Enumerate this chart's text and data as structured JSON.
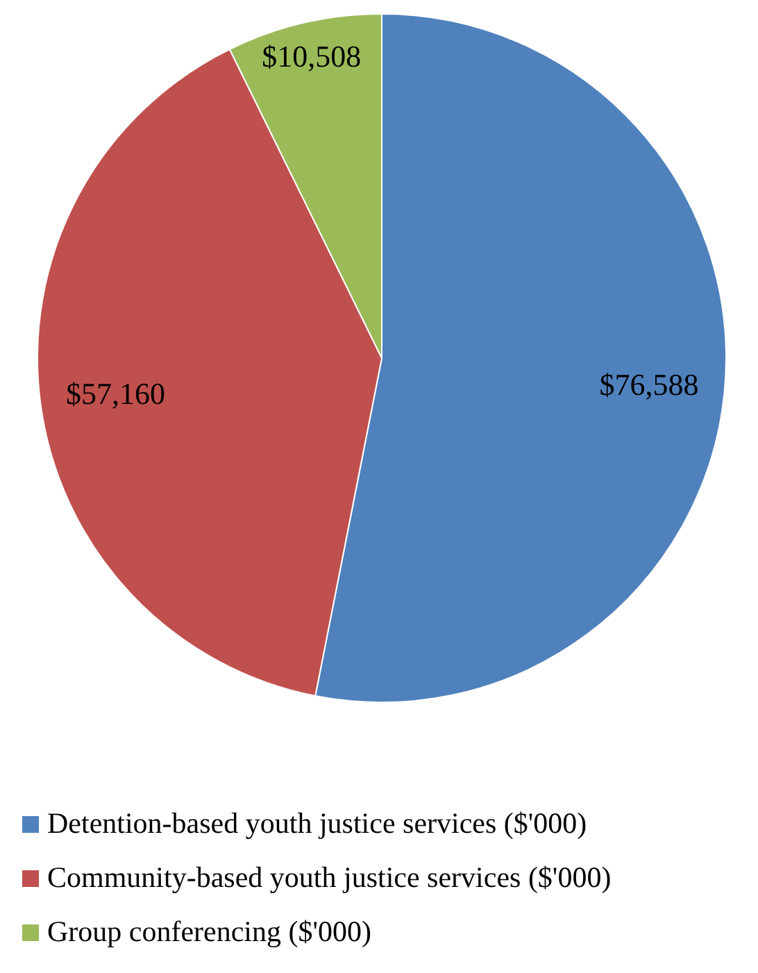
{
  "chart_data": {
    "type": "pie",
    "categories": [
      "Detention-based youth justice services ($'000)",
      "Community-based youth justice services ($'000)",
      "Group conferencing ($'000)"
    ],
    "values": [
      76588,
      57160,
      10508
    ],
    "colors": [
      "#4f81bd",
      "#c0504d",
      "#9bbb59"
    ],
    "value_labels": [
      "$76,588",
      "$57,160",
      "$10,508"
    ],
    "legend": "bottom"
  }
}
